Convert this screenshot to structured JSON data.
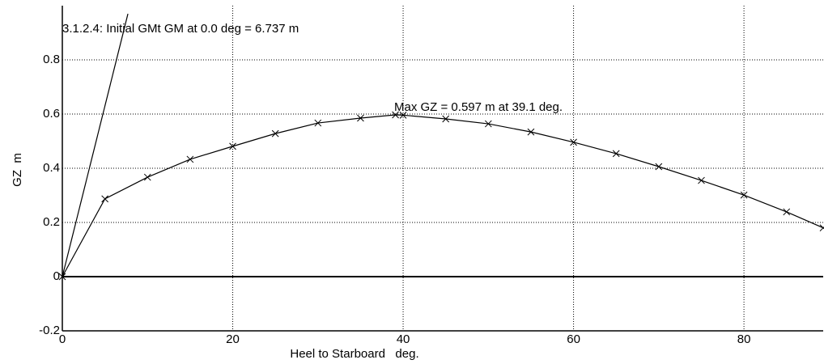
{
  "chart_data": {
    "type": "line",
    "x_label": "Heel to Starboard   deg.",
    "y_label": "GZ  m",
    "xlim": [
      0,
      89.3
    ],
    "ylim": [
      -0.2,
      1.0
    ],
    "xticks": [
      0,
      20,
      40,
      60,
      80
    ],
    "yticks": [
      -0.2,
      0,
      0.2,
      0.4,
      0.6,
      0.8
    ],
    "grid": true,
    "series": [
      {
        "color": "#000000",
        "marker": "x",
        "x": [
          0,
          5,
          10,
          15,
          20,
          25,
          30,
          35,
          39.1,
          40,
          45,
          50,
          55,
          60,
          65,
          70,
          75,
          80,
          85,
          89.3
        ],
        "values": [
          0,
          0.287,
          0.367,
          0.433,
          0.481,
          0.528,
          0.567,
          0.585,
          0.597,
          0.596,
          0.582,
          0.564,
          0.534,
          0.496,
          0.454,
          0.406,
          0.355,
          0.301,
          0.239,
          0.18
        ]
      },
      {
        "color": "#000000",
        "x": [
          0,
          7.7
        ],
        "values": [
          0,
          0.97
        ]
      }
    ],
    "annotations": [
      "3.1.2.4: Initial GMt GM at 0.0 deg = 6.737 m",
      "Max GZ = 0.597 m at 39.1 deg."
    ]
  }
}
